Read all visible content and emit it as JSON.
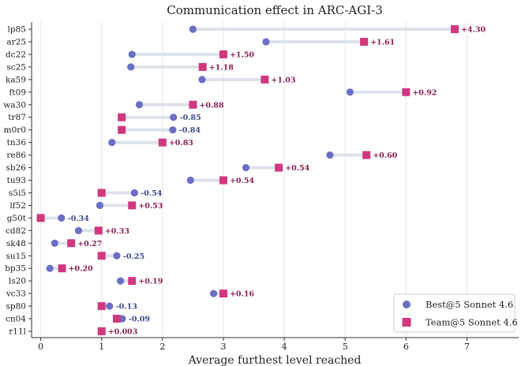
{
  "chart_data": {
    "type": "dumbbell",
    "title": "Communication effect in ARC-AGI-3",
    "xlabel": "Average furthest level reached",
    "xlim": [
      -0.15,
      7.85
    ],
    "xticks": [
      "0",
      "1",
      "2",
      "3",
      "4",
      "5",
      "6",
      "7"
    ],
    "grid": "vertical",
    "legend_position": "lower-right",
    "series": [
      {
        "name": "Best@5 Sonnet 4.6",
        "marker": "circle",
        "color": "#6b6fc4"
      },
      {
        "name": "Team@5 Sonnet 4.6",
        "marker": "square",
        "color": "#d0387f"
      }
    ],
    "connector_color": "#dde2ea",
    "positive_label_color": "#8a1f55",
    "negative_label_color": "#3b4a8a",
    "rows": [
      {
        "label": "lp85",
        "best": 2.5,
        "team": 6.8,
        "delta": "+4.30"
      },
      {
        "label": "ar25",
        "best": 3.7,
        "team": 5.31,
        "delta": "+1.61"
      },
      {
        "label": "dc22",
        "best": 1.5,
        "team": 3.0,
        "delta": "+1.50"
      },
      {
        "label": "sc25",
        "best": 1.48,
        "team": 2.66,
        "delta": "+1.18"
      },
      {
        "label": "ka59",
        "best": 2.65,
        "team": 3.68,
        "delta": "+1.03"
      },
      {
        "label": "ft09",
        "best": 5.08,
        "team": 6.0,
        "delta": "+0.92"
      },
      {
        "label": "wa30",
        "best": 1.62,
        "team": 2.5,
        "delta": "+0.88"
      },
      {
        "label": "tr87",
        "best": 2.18,
        "team": 1.33,
        "delta": "-0.85"
      },
      {
        "label": "m0r0",
        "best": 2.17,
        "team": 1.33,
        "delta": "-0.84"
      },
      {
        "label": "tn36",
        "best": 1.17,
        "team": 2.0,
        "delta": "+0.83"
      },
      {
        "label": "re86",
        "best": 4.75,
        "team": 5.35,
        "delta": "+0.60"
      },
      {
        "label": "sb26",
        "best": 3.37,
        "team": 3.91,
        "delta": "+0.54"
      },
      {
        "label": "tu93",
        "best": 2.46,
        "team": 3.0,
        "delta": "+0.54"
      },
      {
        "label": "s5i5",
        "best": 1.54,
        "team": 1.0,
        "delta": "-0.54"
      },
      {
        "label": "lf52",
        "best": 0.97,
        "team": 1.5,
        "delta": "+0.53"
      },
      {
        "label": "g50t",
        "best": 0.34,
        "team": 0.0,
        "delta": "-0.34"
      },
      {
        "label": "cd82",
        "best": 0.62,
        "team": 0.95,
        "delta": "+0.33"
      },
      {
        "label": "sk48",
        "best": 0.23,
        "team": 0.5,
        "delta": "+0.27"
      },
      {
        "label": "su15",
        "best": 1.25,
        "team": 1.0,
        "delta": "-0.25"
      },
      {
        "label": "bp35",
        "best": 0.15,
        "team": 0.35,
        "delta": "+0.20"
      },
      {
        "label": "ls20",
        "best": 1.31,
        "team": 1.5,
        "delta": "+0.19"
      },
      {
        "label": "vc33",
        "best": 2.84,
        "team": 3.0,
        "delta": "+0.16"
      },
      {
        "label": "sp80",
        "best": 1.13,
        "team": 1.0,
        "delta": "-0.13"
      },
      {
        "label": "cn04",
        "best": 1.34,
        "team": 1.25,
        "delta": "-0.09"
      },
      {
        "label": "r11l",
        "best": 0.997,
        "team": 1.0,
        "delta": "+0.003"
      }
    ]
  }
}
